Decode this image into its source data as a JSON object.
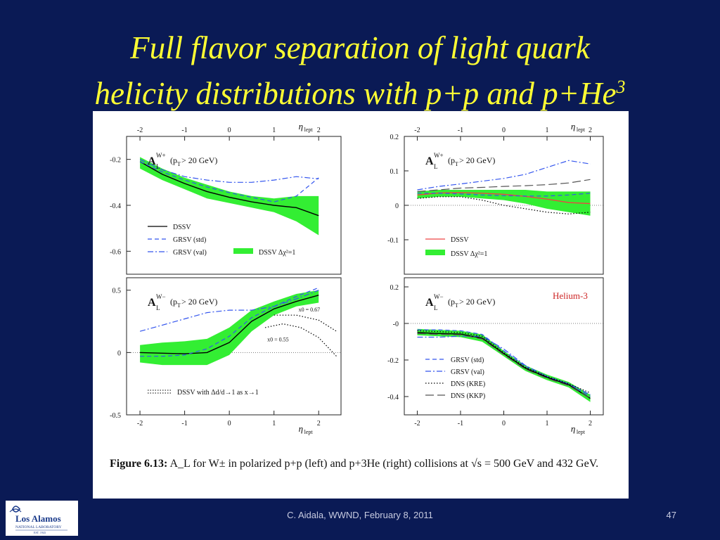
{
  "slide": {
    "title_line1": "Full flavor separation of light quark",
    "title_line2": "helicity distributions with p+p and p+He",
    "title_sup": "3",
    "footer": "C. Aidala, WWND, February 8, 2011",
    "page_number": "47"
  },
  "figure": {
    "caption_label": "Figure 6.13:",
    "caption_text": "A_L for W± in polarized p+p (left) and p+3He (right) collisions at √s = 500 GeV and 432 GeV."
  },
  "logo": {
    "name": "Los Alamos",
    "sub": "NATIONAL LABORATORY",
    "est": "EST. 1943"
  },
  "colors": {
    "background": "#0a1a55",
    "title": "#ffff33",
    "band": "#33ee33",
    "grsv": "#3355ee",
    "dssv_red": "#ee4444",
    "helium": "#cc2222"
  },
  "chart_data": [
    {
      "type": "line",
      "panel": "top-left",
      "label_main": "A",
      "label_sub": "L",
      "label_sup": "W+",
      "cut": "(p",
      "cut_sub": "T",
      "cut_rest": " > 20 GeV)",
      "xlabel_top": "η",
      "xlabel_sub": "lept",
      "xticks": [
        "-2",
        "-1",
        "0",
        "1",
        "2"
      ],
      "xlim": [
        -2.3,
        2.5
      ],
      "ylim": [
        -0.7,
        -0.1
      ],
      "yticks": [
        -0.2,
        -0.4,
        -0.6
      ],
      "ytick_labels": [
        "-0.2",
        "-0.4",
        "-0.6"
      ],
      "band": {
        "x": [
          -2,
          -1.5,
          -1,
          -0.5,
          0,
          0.5,
          1,
          1.5,
          2
        ],
        "lower": [
          -0.24,
          -0.29,
          -0.33,
          -0.37,
          -0.39,
          -0.41,
          -0.43,
          -0.47,
          -0.53
        ],
        "upper": [
          -0.19,
          -0.24,
          -0.28,
          -0.31,
          -0.34,
          -0.36,
          -0.37,
          -0.36,
          -0.36
        ]
      },
      "series": [
        {
          "name": "DSSV",
          "style": "solid",
          "color": "#000000",
          "x": [
            -2,
            -1.5,
            -1,
            -0.5,
            0,
            0.5,
            1,
            1.5,
            2
          ],
          "y": [
            -0.21,
            -0.265,
            -0.305,
            -0.34,
            -0.365,
            -0.385,
            -0.4,
            -0.41,
            -0.445
          ]
        },
        {
          "name": "GRSV (std)",
          "style": "dashed",
          "color": "#3355ee",
          "x": [
            -2,
            -1.5,
            -1,
            -0.5,
            0,
            0.5,
            1,
            1.5,
            2
          ],
          "y": [
            -0.21,
            -0.255,
            -0.29,
            -0.32,
            -0.345,
            -0.365,
            -0.385,
            -0.36,
            -0.28
          ]
        },
        {
          "name": "GRSV (val)",
          "style": "dashdot",
          "color": "#3355ee",
          "x": [
            -2,
            -1.5,
            -1,
            -0.5,
            0,
            0.5,
            1,
            1.5,
            2
          ],
          "y": [
            -0.2,
            -0.245,
            -0.275,
            -0.29,
            -0.3,
            -0.3,
            -0.29,
            -0.275,
            -0.285
          ]
        }
      ],
      "legend": [
        "DSSV",
        "GRSV (std)",
        "GRSV (val)",
        "DSSV Δχ²=1"
      ]
    },
    {
      "type": "line",
      "panel": "top-right",
      "label_main": "A",
      "label_sub": "L",
      "label_sup": "W+",
      "cut": "(p",
      "cut_sub": "T",
      "cut_rest": " > 20 GeV)",
      "xlabel_top": "η",
      "xlabel_sub": "lept",
      "xticks": [
        "-2",
        "-1",
        "0",
        "1",
        "2"
      ],
      "xlim": [
        -2.3,
        2.3
      ],
      "ylim": [
        -0.2,
        0.2
      ],
      "yticks": [
        0.2,
        0.1,
        0,
        -0.1
      ],
      "ytick_labels": [
        "0.2",
        "0.1",
        "0",
        "-0.1"
      ],
      "band": {
        "x": [
          -2,
          -1.5,
          -1,
          -0.5,
          0,
          0.5,
          1,
          1.5,
          2
        ],
        "lower": [
          0.02,
          0.025,
          0.025,
          0.02,
          0.015,
          0.005,
          -0.01,
          -0.02,
          -0.03
        ],
        "upper": [
          0.04,
          0.045,
          0.045,
          0.045,
          0.045,
          0.045,
          0.04,
          0.04,
          0.04
        ]
      },
      "series": [
        {
          "name": "DSSV",
          "style": "solid",
          "color": "#ee4444",
          "x": [
            -2,
            -1.5,
            -1,
            -0.5,
            0,
            0.5,
            1,
            1.5,
            2
          ],
          "y": [
            0.03,
            0.036,
            0.037,
            0.035,
            0.032,
            0.026,
            0.018,
            0.008,
            0.005
          ]
        },
        {
          "name": "GRSV (val)",
          "style": "dashdot",
          "color": "#3355ee",
          "x": [
            -2,
            -1.5,
            -1,
            -0.5,
            0,
            0.5,
            1,
            1.5,
            2
          ],
          "y": [
            0.045,
            0.055,
            0.062,
            0.07,
            0.078,
            0.09,
            0.11,
            0.13,
            0.12
          ]
        },
        {
          "name": "GRSV (std)",
          "style": "dashed",
          "color": "#3355ee",
          "x": [
            -2,
            -1.5,
            -1,
            -0.5,
            0,
            0.5,
            1,
            1.5,
            2
          ],
          "y": [
            0.035,
            0.035,
            0.033,
            0.03,
            0.028,
            0.027,
            0.027,
            0.03,
            0.035
          ]
        },
        {
          "name": "DNS (KKP)",
          "style": "longdash",
          "color": "#555555",
          "x": [
            -2,
            -1.5,
            -1,
            -0.5,
            0,
            0.5,
            1,
            1.5,
            2
          ],
          "y": [
            0.04,
            0.045,
            0.05,
            0.052,
            0.055,
            0.057,
            0.06,
            0.065,
            0.075
          ]
        },
        {
          "name": "DNS (KRE)",
          "style": "dotted",
          "color": "#000000",
          "x": [
            -2,
            -1.5,
            -1,
            -0.5,
            0,
            0.5,
            1,
            1.5,
            2
          ],
          "y": [
            0.02,
            0.025,
            0.025,
            0.015,
            0.0,
            -0.01,
            -0.02,
            -0.025,
            -0.02
          ]
        }
      ],
      "legend": [
        "DSSV",
        "DSSV Δχ²=1"
      ]
    },
    {
      "type": "line",
      "panel": "bottom-left",
      "label_main": "A",
      "label_sub": "L",
      "label_sup": "W−",
      "cut": "(p",
      "cut_sub": "T",
      "cut_rest": " > 20 GeV)",
      "xlabel_bottom": "η",
      "xlabel_sub": "lept",
      "xticks": [
        "-2",
        "-1",
        "0",
        "1",
        "2"
      ],
      "xlim": [
        -2.3,
        2.5
      ],
      "ylim": [
        -0.5,
        0.6
      ],
      "yticks": [
        0.5,
        0,
        -0.5
      ],
      "ytick_labels": [
        "0.5",
        "0",
        "-0.5"
      ],
      "annotations": [
        "x0 = 0.67",
        "x0 = 0.55"
      ],
      "band": {
        "x": [
          -2,
          -1.5,
          -1,
          -0.5,
          0,
          0.5,
          1,
          1.5,
          2
        ],
        "lower": [
          -0.08,
          -0.1,
          -0.1,
          -0.1,
          -0.02,
          0.17,
          0.3,
          0.37,
          0.4
        ],
        "upper": [
          0.06,
          0.08,
          0.09,
          0.11,
          0.2,
          0.34,
          0.41,
          0.47,
          0.5
        ]
      },
      "series": [
        {
          "name": "DSSV",
          "style": "solid",
          "color": "#000000",
          "x": [
            -2,
            -1.5,
            -1,
            -0.5,
            0,
            0.5,
            1,
            1.5,
            2
          ],
          "y": [
            0.0,
            -0.005,
            -0.01,
            0.0,
            0.08,
            0.25,
            0.35,
            0.41,
            0.46
          ]
        },
        {
          "name": "GRSV (std)",
          "style": "dashed",
          "color": "#3355ee",
          "x": [
            -2,
            -1.5,
            -1,
            -0.5,
            0,
            0.5,
            1,
            1.5,
            2
          ],
          "y": [
            -0.03,
            -0.03,
            -0.02,
            0.03,
            0.13,
            0.28,
            0.37,
            0.45,
            0.52
          ]
        },
        {
          "name": "GRSV (val)",
          "style": "dashdot",
          "color": "#3355ee",
          "x": [
            -2,
            -1.5,
            -1,
            -0.5,
            0,
            0.5,
            1,
            1.5,
            2
          ],
          "y": [
            0.17,
            0.22,
            0.27,
            0.32,
            0.34,
            0.34,
            0.37,
            0.43,
            0.5
          ]
        },
        {
          "name": "DSSV with Δd/d→1 as x→1 (x0 = 0.67)",
          "style": "dotted",
          "color": "#000000",
          "x": [
            1,
            1.5,
            2,
            2.4
          ],
          "y": [
            0.3,
            0.3,
            0.26,
            0.17
          ]
        },
        {
          "name": "DSSV with Δd/d→1 as x→1 (x0 = 0.55)",
          "style": "dotted",
          "color": "#000000",
          "x": [
            0.8,
            1.2,
            1.6,
            2,
            2.4
          ],
          "y": [
            0.2,
            0.23,
            0.2,
            0.12,
            -0.03
          ]
        }
      ],
      "legend": [
        "DSSV with Δd/d→1 as x→1"
      ]
    },
    {
      "type": "line",
      "panel": "bottom-right",
      "label_main": "A",
      "label_sub": "L",
      "label_sup": "W−",
      "cut": "(p",
      "cut_sub": "T",
      "cut_rest": " > 20 GeV)",
      "tag": "Helium-3",
      "xlabel_bottom": "η",
      "xlabel_sub": "lept",
      "xticks": [
        "-2",
        "-1",
        "0",
        "1",
        "2"
      ],
      "xlim": [
        -2.3,
        2.3
      ],
      "ylim": [
        -0.5,
        0.25
      ],
      "yticks": [
        0.2,
        0,
        -0.2,
        -0.4
      ],
      "ytick_labels": [
        "0.2",
        "-0",
        "-0.2",
        "-0.4"
      ],
      "band": {
        "x": [
          -2,
          -1.5,
          -1,
          -0.5,
          0,
          0.5,
          1,
          1.5,
          2
        ],
        "lower": [
          -0.065,
          -0.07,
          -0.075,
          -0.1,
          -0.18,
          -0.26,
          -0.31,
          -0.35,
          -0.43
        ],
        "upper": [
          -0.03,
          -0.035,
          -0.04,
          -0.06,
          -0.15,
          -0.23,
          -0.28,
          -0.32,
          -0.39
        ]
      },
      "series": [
        {
          "name": "DSSV",
          "style": "solid",
          "color": "#000000",
          "x": [
            -2,
            -1.5,
            -1,
            -0.5,
            0,
            0.5,
            1,
            1.5,
            2
          ],
          "y": [
            -0.05,
            -0.055,
            -0.058,
            -0.08,
            -0.165,
            -0.245,
            -0.295,
            -0.335,
            -0.41
          ]
        },
        {
          "name": "GRSV (std)",
          "style": "dashed",
          "color": "#3355ee",
          "x": [
            -2,
            -1.5,
            -1,
            -0.5,
            0,
            0.5,
            1,
            1.5,
            2
          ],
          "y": [
            -0.035,
            -0.035,
            -0.04,
            -0.06,
            -0.15,
            -0.235,
            -0.29,
            -0.33,
            -0.4
          ]
        },
        {
          "name": "GRSV (val)",
          "style": "dashdot",
          "color": "#3355ee",
          "x": [
            -2,
            -1.5,
            -1,
            -0.5,
            0,
            0.5,
            1,
            1.5,
            2
          ],
          "y": [
            -0.075,
            -0.075,
            -0.07,
            -0.07,
            -0.14,
            -0.23,
            -0.29,
            -0.33,
            -0.39
          ]
        },
        {
          "name": "DNS (KRE)",
          "style": "dotted",
          "color": "#000000",
          "x": [
            -2,
            -1.5,
            -1,
            -0.5,
            0,
            0.5,
            1,
            1.5,
            2
          ],
          "y": [
            -0.04,
            -0.045,
            -0.05,
            -0.07,
            -0.16,
            -0.24,
            -0.29,
            -0.33,
            -0.38
          ]
        },
        {
          "name": "DNS (KKP)",
          "style": "longdash",
          "color": "#555555",
          "x": [
            -2,
            -1.5,
            -1,
            -0.5,
            0,
            0.5,
            1,
            1.5,
            2
          ],
          "y": [
            -0.055,
            -0.06,
            -0.062,
            -0.085,
            -0.17,
            -0.25,
            -0.3,
            -0.34,
            -0.41
          ]
        }
      ],
      "legend": [
        "GRSV (std)",
        "GRSV (val)",
        "DNS (KRE)",
        "DNS (KKP)"
      ]
    }
  ]
}
